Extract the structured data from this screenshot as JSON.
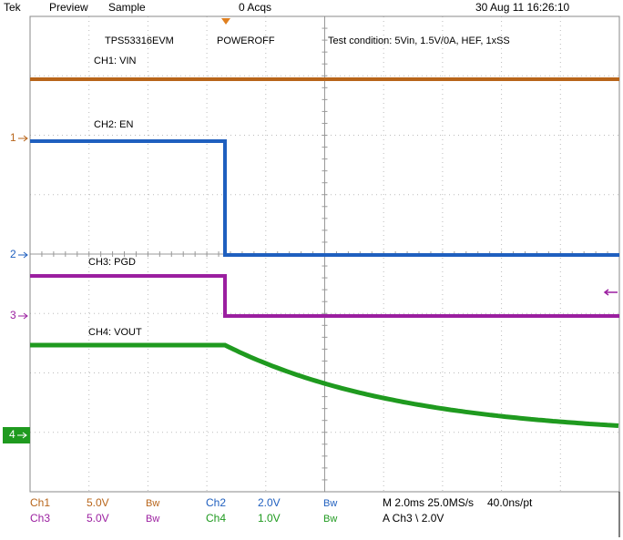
{
  "header": {
    "brand": "Tek",
    "mode": "Preview",
    "acquisition": "Sample",
    "acqs": "0 Acqs",
    "timestamp": "30 Aug 11 16:26:10"
  },
  "screen": {
    "board": "TPS53316EVM",
    "event": "POWEROFF",
    "condition": "Test condition: 5Vin, 1.5V/0A, HEF, 1xSS",
    "traces": [
      {
        "label": "CH1: VIN",
        "marker": "1"
      },
      {
        "label": "CH2: EN",
        "marker": "2"
      },
      {
        "label": "CH3: PGD",
        "marker": "3"
      },
      {
        "label": "CH4: VOUT",
        "marker": "4"
      }
    ]
  },
  "footer": {
    "rows": [
      [
        "Ch1",
        "5.0V",
        "Bw",
        "Ch2",
        "2.0V",
        "Bw",
        "M 2.0ms 25.0MS/s",
        "40.0ns/pt"
      ],
      [
        "Ch3",
        "5.0V",
        "Bw",
        "Ch4",
        "1.0V",
        "Bw",
        "A  Ch3  \\  2.0V"
      ]
    ]
  }
}
